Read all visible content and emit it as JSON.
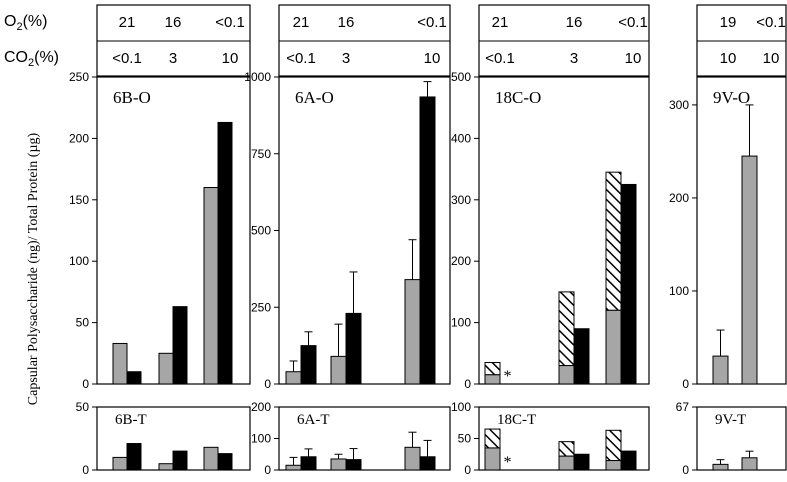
{
  "figure": {
    "y_axis_label": "Capsular Polysaccharide (ng)/ Total Protein (µg)",
    "o2_label": "O",
    "o2_sub": "2",
    "o2_unit": "(%)",
    "co2_label": "CO",
    "co2_sub": "2",
    "co2_unit": "(%)"
  },
  "colors": {
    "gray": "#a6a6a6",
    "black": "#000000",
    "hatch": "#000000"
  },
  "chart_data": [
    {
      "id": "6B",
      "type": "bar",
      "o2_values": [
        "21",
        "16",
        "<0.1"
      ],
      "co2_values": [
        "<0.1",
        "3",
        "10"
      ],
      "top": {
        "title": "6B-O",
        "ylim": [
          0,
          250
        ],
        "yticks": [
          0,
          50,
          100,
          150,
          200,
          250
        ],
        "series": [
          {
            "name": "",
            "color": "gray",
            "values": [
              33,
              25,
              160
            ]
          },
          {
            "name": "",
            "color": "black",
            "values": [
              10,
              63,
              213
            ]
          }
        ]
      },
      "bottom": {
        "title": "6B-T",
        "ylim": [
          0,
          50
        ],
        "yticks": [
          0,
          50
        ],
        "series": [
          {
            "name": "",
            "color": "gray",
            "values": [
              10,
              5,
              18
            ]
          },
          {
            "name": "",
            "color": "black",
            "values": [
              21,
              15,
              13
            ]
          }
        ]
      }
    },
    {
      "id": "6A",
      "type": "bar",
      "o2_values": [
        "21",
        "16",
        "<0.1"
      ],
      "co2_values": [
        "<0.1",
        "3",
        "10"
      ],
      "top": {
        "title": "6A-O",
        "ylim": [
          0,
          1000
        ],
        "yticks": [
          0,
          250,
          500,
          750,
          1000
        ],
        "series": [
          {
            "name": "",
            "color": "gray",
            "values": [
              40,
              90,
              340
            ],
            "errors": [
              35,
              105,
              130
            ]
          },
          {
            "name": "",
            "color": "black",
            "values": [
              125,
              230,
              935
            ],
            "errors": [
              45,
              135,
              50
            ]
          }
        ]
      },
      "bottom": {
        "title": "6A-T",
        "ylim": [
          0,
          200
        ],
        "yticks": [
          0,
          100,
          200
        ],
        "series": [
          {
            "name": "",
            "color": "gray",
            "values": [
              15,
              35,
              72
            ],
            "errors": [
              25,
              15,
              48
            ]
          },
          {
            "name": "",
            "color": "black",
            "values": [
              42,
              33,
              42
            ],
            "errors": [
              25,
              35,
              52
            ]
          }
        ]
      }
    },
    {
      "id": "18C",
      "type": "bar",
      "o2_values": [
        "21",
        "16",
        "<0.1"
      ],
      "co2_values": [
        "<0.1",
        "3",
        "10"
      ],
      "top": {
        "title": "18C-O",
        "ylim": [
          0,
          500
        ],
        "yticks": [
          0,
          100,
          200,
          300,
          400,
          500
        ],
        "series": [
          {
            "name": "",
            "color": "gray",
            "values": [
              15,
              30,
              120
            ],
            "stack_hatched": [
              35,
              150,
              345
            ]
          },
          {
            "name": "",
            "color": "black",
            "values": [
              null,
              90,
              325
            ]
          }
        ],
        "markers": [
          {
            "group": 0,
            "text": "*"
          }
        ]
      },
      "bottom": {
        "title": "18C-T",
        "ylim": [
          0,
          100
        ],
        "yticks": [
          0,
          50,
          100
        ],
        "series": [
          {
            "name": "",
            "color": "gray",
            "values": [
              35,
              22,
              15
            ],
            "stack_hatched": [
              65,
              45,
              63
            ]
          },
          {
            "name": "",
            "color": "black",
            "values": [
              null,
              25,
              30
            ]
          }
        ],
        "markers": [
          {
            "group": 0,
            "text": "*"
          }
        ]
      }
    },
    {
      "id": "9V",
      "type": "bar",
      "o2_values": [
        "19",
        "<0.1"
      ],
      "co2_values": [
        "10",
        "10"
      ],
      "top": {
        "title": "9V-O",
        "ylim": [
          0,
          330
        ],
        "yticks": [
          0,
          100,
          200,
          300
        ],
        "series": [
          {
            "name": "",
            "color": "gray",
            "values": [
              30,
              245
            ],
            "errors": [
              28,
              55
            ]
          }
        ]
      },
      "bottom": {
        "title": "9V-T",
        "ylim": [
          0,
          67
        ],
        "yticks": [
          0,
          67
        ],
        "series": [
          {
            "name": "",
            "color": "gray",
            "values": [
              6,
              13
            ],
            "errors": [
              5,
              7
            ]
          }
        ]
      }
    }
  ]
}
